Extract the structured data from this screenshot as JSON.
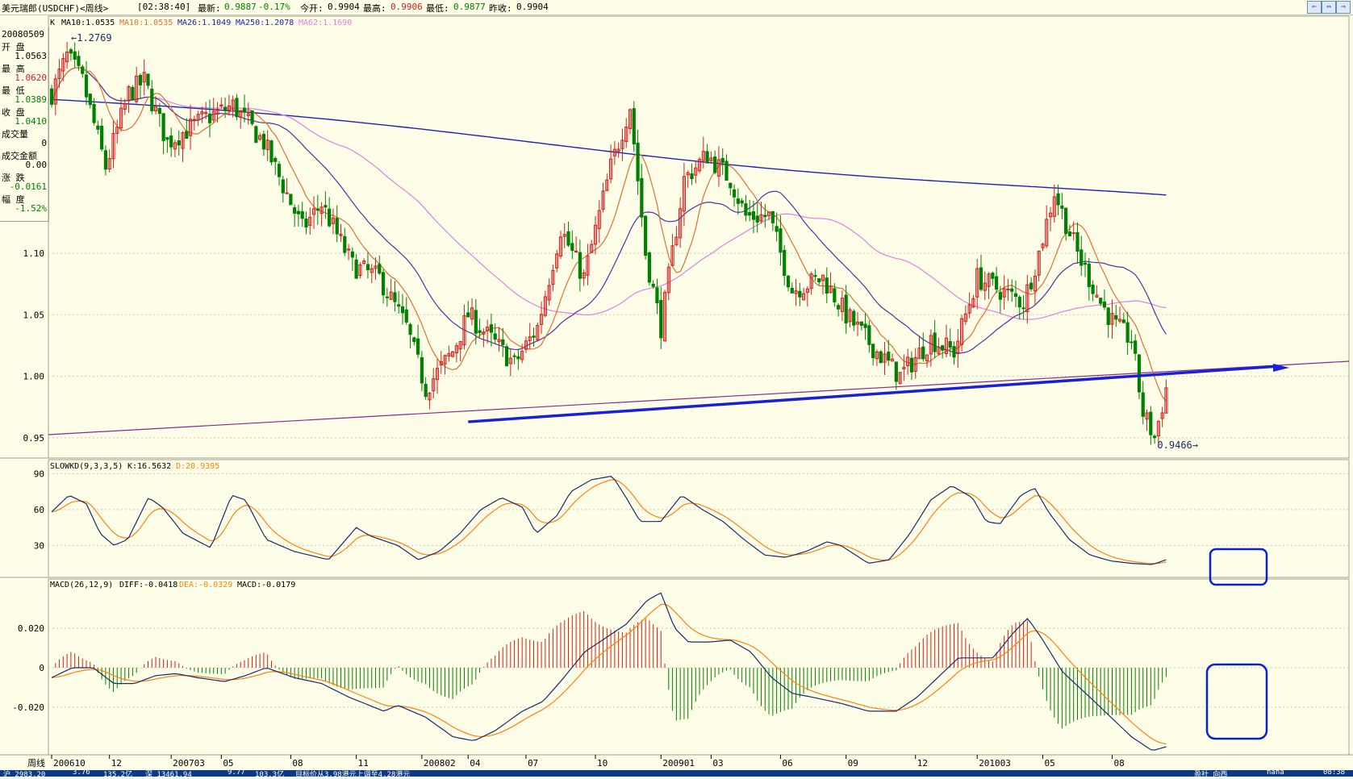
{
  "titlebar": {
    "name": "美元瑞郎(USDCHF)<周线>",
    "time": "[02:38:40]",
    "latest_label": "最新:",
    "latest": "0.9887",
    "change": "-0.17%",
    "open_label": "今开:",
    "open": "0.9904",
    "high_label": "最高:",
    "high": "0.9906",
    "low_label": "最低:",
    "low": "0.9877",
    "prev_label": "昨收:",
    "prev": "0.9904"
  },
  "legend": {
    "k": "K",
    "ma10": "MA10:1.0535",
    "ma10b": "MA10:1.0535",
    "ma26": "MA26:1.1049",
    "ma250": "MA250:1.2078",
    "ma62": "MA62:1.1690"
  },
  "info": {
    "date": "20080509",
    "open_label": "开  盘",
    "open": "1.0563",
    "high_label": "最  高",
    "high": "1.0620",
    "low_label": "最  低",
    "low": "1.0389",
    "close_label": "收  盘",
    "close": "1.0410",
    "vol_label": "成交量",
    "vol": "0",
    "amt_label": "成交金额",
    "amt": "0.00",
    "chg_label": "涨  跌",
    "chg": "-0.0161",
    "pct_label": "幅  度",
    "pct": "-1.52%"
  },
  "colors": {
    "up": "#d02020",
    "down": "#008000",
    "ma10": "#e07030",
    "ma26": "#5030a0",
    "ma62": "#e080e0",
    "ma250": "#2020c0",
    "trend": "#1a20d8",
    "support": "#8a2a8a",
    "kline": "#1a2a6a",
    "dline": "#ff8010",
    "box": "#0a20d8"
  },
  "chart_data": [
    {
      "type": "candlestick",
      "title": "",
      "yticks": [
        "1.10",
        "1.05",
        "1.00",
        "0.95"
      ],
      "ylim": [
        0.935,
        1.285
      ],
      "xticks": [
        "200610",
        "12",
        "200703",
        "05",
        "08",
        "11",
        "200802",
        "04",
        "07",
        "10",
        "200901",
        "03",
        "06",
        "09",
        "12",
        "201003",
        "05",
        "08"
      ],
      "xlabel": "周线",
      "max_label": "1.2769",
      "min_label": "0.9466",
      "anchors_close": [
        [
          0,
          1.23
        ],
        [
          4,
          1.26
        ],
        [
          8,
          1.24
        ],
        [
          14,
          1.17
        ],
        [
          20,
          1.23
        ],
        [
          24,
          1.24
        ],
        [
          30,
          1.19
        ],
        [
          40,
          1.21
        ],
        [
          47,
          1.22
        ],
        [
          55,
          1.19
        ],
        [
          65,
          1.12
        ],
        [
          70,
          1.14
        ],
        [
          78,
          1.09
        ],
        [
          85,
          1.08
        ],
        [
          92,
          1.04
        ],
        [
          97,
          0.99
        ],
        [
          104,
          1.02
        ],
        [
          108,
          1.05
        ],
        [
          114,
          1.03
        ],
        [
          120,
          1.01
        ],
        [
          126,
          1.04
        ],
        [
          132,
          1.12
        ],
        [
          138,
          1.08
        ],
        [
          145,
          1.17
        ],
        [
          150,
          1.22
        ],
        [
          154,
          1.1
        ],
        [
          158,
          1.04
        ],
        [
          164,
          1.16
        ],
        [
          170,
          1.18
        ],
        [
          176,
          1.16
        ],
        [
          180,
          1.13
        ],
        [
          186,
          1.13
        ],
        [
          192,
          1.07
        ],
        [
          200,
          1.08
        ],
        [
          206,
          1.05
        ],
        [
          214,
          1.02
        ],
        [
          220,
          1.0
        ],
        [
          228,
          1.03
        ],
        [
          234,
          1.02
        ],
        [
          240,
          1.08
        ],
        [
          246,
          1.07
        ],
        [
          252,
          1.06
        ],
        [
          256,
          1.1
        ],
        [
          260,
          1.15
        ],
        [
          266,
          1.1
        ],
        [
          272,
          1.06
        ],
        [
          276,
          1.04
        ],
        [
          280,
          1.03
        ],
        [
          283,
          0.97
        ],
        [
          286,
          0.95
        ],
        [
          289,
          0.99
        ]
      ],
      "moving_averages": [
        "MA10",
        "MA26",
        "MA62",
        "MA250"
      ],
      "trendline": {
        "from": [
          0.9466,
          "200804"
        ],
        "to": [
          1.01,
          "201008"
        ]
      }
    },
    {
      "type": "line",
      "title": "SLOWKD(9,3,3,5)",
      "series": [
        {
          "name": "K",
          "last": "K:16.5632"
        },
        {
          "name": "D",
          "last": "D:20.9395"
        }
      ],
      "yticks": [
        "90",
        "60",
        "30"
      ],
      "ylim": [
        10,
        95
      ]
    },
    {
      "type": "bar+line",
      "title": "MACD(26,12,9)",
      "series": [
        {
          "name": "DIFF",
          "last": "DIFF:-0.0418"
        },
        {
          "name": "DEA",
          "last": "DEA:-0.0329"
        },
        {
          "name": "MACD",
          "last": "MACD:-0.0179"
        }
      ],
      "yticks": [
        "0.020",
        "0",
        "-0.020"
      ],
      "ylim": [
        -0.044,
        0.04
      ]
    }
  ],
  "statusbar": {
    "s1": "沪  2983.20",
    "s2": "3.76",
    "s3": "135.2亿",
    "s4": "深  13461.94",
    "s5": "9.77",
    "s6": "103.3亿",
    "s7": "目标价从3.98港元上调至4.28港元",
    "s8": "盈社  向西",
    "s9": "naha",
    "s10": "08:38"
  }
}
